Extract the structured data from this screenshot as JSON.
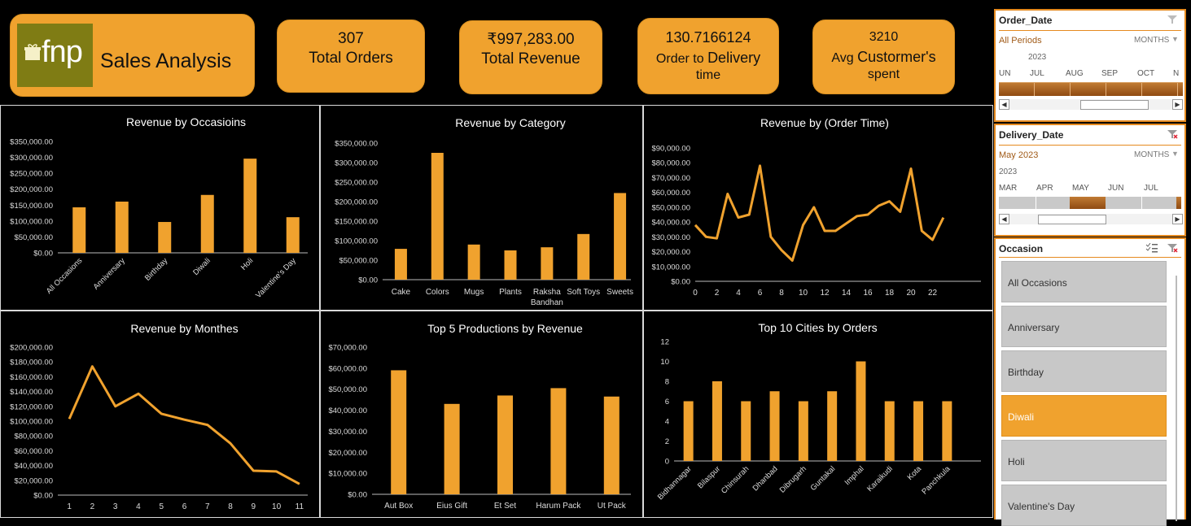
{
  "header": {
    "logo_text": "fnp",
    "title": "Sales Analysis"
  },
  "kpis": [
    {
      "value": "307",
      "label": "Total Orders"
    },
    {
      "value": "₹997,283.00",
      "label": "Total Revenue"
    },
    {
      "value": "130.7166124",
      "label_a": "Order to",
      "label_b": "Delivery",
      "label_c": "time"
    },
    {
      "value": "3210",
      "label_a": "Avg",
      "label_b": "Custormer's",
      "label_c": "spent"
    }
  ],
  "colors": {
    "accent": "#f0a22e",
    "background": "#000000",
    "slicer_border": "#e58a1f",
    "slicer_fill": "#a3581a"
  },
  "chart_data": [
    {
      "type": "bar",
      "title": "Revenue by Occasioins",
      "categories": [
        "All Occasions",
        "Anniversary",
        "Birthday",
        "Diwali",
        "Holi",
        "Valentine's Day"
      ],
      "values": [
        143000,
        161000,
        97000,
        182000,
        296000,
        112000
      ],
      "ylim": [
        0,
        350000
      ],
      "yticks": [
        "$0.00",
        "$50,000.00",
        "$100,000.00",
        "$150,000.00",
        "$200,000.00",
        "$250,000.00",
        "$300,000.00",
        "$350,000.00"
      ],
      "grid": false,
      "x_labels_rotated": true
    },
    {
      "type": "bar",
      "title": "Revenue by Category",
      "categories": [
        "Cake",
        "Colors",
        "Mugs",
        "Plants",
        "Raksha Bandhan",
        "Soft Toys",
        "Sweets"
      ],
      "values": [
        79000,
        325000,
        90000,
        75000,
        83000,
        117000,
        222000
      ],
      "ylim": [
        0,
        350000
      ],
      "yticks": [
        "$0.00",
        "$50,000.00",
        "$100,000.00",
        "$150,000.00",
        "$200,000.00",
        "$250,000.00",
        "$300,000.00",
        "$350,000.00"
      ],
      "grid": false
    },
    {
      "type": "line",
      "title": "Revenue by (Order Time)",
      "x": [
        0,
        1,
        2,
        3,
        4,
        5,
        6,
        7,
        8,
        9,
        10,
        11,
        12,
        13,
        14,
        15,
        16,
        17,
        18,
        19,
        20,
        21,
        22,
        23
      ],
      "values": [
        38000,
        30000,
        29000,
        59000,
        43000,
        45000,
        78000,
        30000,
        21000,
        14000,
        38000,
        50000,
        34000,
        34000,
        39000,
        44000,
        45000,
        51000,
        54000,
        47000,
        76000,
        34000,
        28000,
        43000
      ],
      "ylim": [
        0,
        90000
      ],
      "yticks": [
        "$0.00",
        "$10,000.00",
        "$20,000.00",
        "$30,000.00",
        "$40,000.00",
        "$50,000.00",
        "$60,000.00",
        "$70,000.00",
        "$80,000.00",
        "$90,000.00"
      ],
      "xticks": [
        "0",
        "2",
        "4",
        "6",
        "8",
        "10",
        "12",
        "14",
        "16",
        "18",
        "20",
        "22"
      ],
      "grid": false
    },
    {
      "type": "line",
      "title": "Revenue  by Monthes",
      "x": [
        1,
        2,
        3,
        4,
        5,
        6,
        7,
        8,
        9,
        10,
        11
      ],
      "values": [
        103000,
        174000,
        120000,
        137000,
        110000,
        102000,
        95000,
        70000,
        33000,
        32000,
        15000
      ],
      "ylim": [
        0,
        200000
      ],
      "yticks": [
        "$0.00",
        "$20,000.00",
        "$40,000.00",
        "$60,000.00",
        "$80,000.00",
        "$100,000.00",
        "$120,000.00",
        "$140,000.00",
        "$160,000.00",
        "$180,000.00",
        "$200,000.00"
      ],
      "xticks": [
        "1",
        "2",
        "3",
        "4",
        "5",
        "6",
        "7",
        "8",
        "9",
        "10",
        "11"
      ],
      "grid": false
    },
    {
      "type": "bar",
      "title": "Top 5 Productions by Revenue",
      "categories": [
        "Aut Box",
        "Eius Gift",
        "Et Set",
        "Harum Pack",
        "Ut Pack"
      ],
      "values": [
        59000,
        43000,
        47000,
        50500,
        46500
      ],
      "ylim": [
        0,
        70000
      ],
      "yticks": [
        "$0.00",
        "$10,000.00",
        "$20,000.00",
        "$30,000.00",
        "$40,000.00",
        "$50,000.00",
        "$60,000.00",
        "$70,000.00"
      ],
      "grid": false
    },
    {
      "type": "bar",
      "title": "Top 10 Cities by Orders",
      "categories": [
        "Bidhannagar",
        "Bilaspur",
        "Chinsurah",
        "Dhanbad",
        "Dibrugarh",
        "Guntakal",
        "Imphal",
        "Karaikudi",
        "Kota",
        "Panchkula"
      ],
      "values": [
        6,
        8,
        6,
        7,
        6,
        7,
        10,
        6,
        6,
        6
      ],
      "ylim": [
        0,
        12
      ],
      "yticks": [
        "0",
        "2",
        "4",
        "6",
        "8",
        "10",
        "12"
      ],
      "grid": false,
      "x_labels_rotated": true
    }
  ],
  "slicers": {
    "order_date": {
      "title": "Order_Date",
      "selection": "All Periods",
      "level": "MONTHS",
      "year": "2023",
      "months": [
        "UN",
        "JUL",
        "AUG",
        "SEP",
        "OCT",
        "N"
      ],
      "filter_icon": "clear-filter-icon"
    },
    "delivery_date": {
      "title": "Delivery_Date",
      "selection": "May 2023",
      "level": "MONTHS",
      "year": "2023",
      "months": [
        "MAR",
        "APR",
        "MAY",
        "JUN",
        "JUL"
      ],
      "filter_icon": "clear-filter-icon"
    },
    "occasion": {
      "title": "Occasion",
      "items": [
        "All Occasions",
        "Anniversary",
        "Birthday",
        "Diwali",
        "Holi",
        "Valentine's Day"
      ],
      "selected": "Diwali"
    }
  }
}
